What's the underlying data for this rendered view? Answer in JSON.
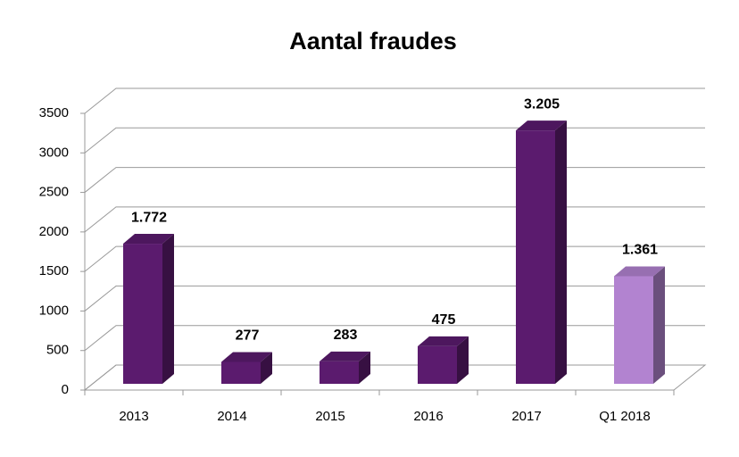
{
  "chart_data": {
    "type": "bar3d",
    "title": "Aantal fraudes",
    "categories": [
      "2013",
      "2014",
      "2015",
      "2016",
      "2017",
      "Q1 2018"
    ],
    "values": [
      1772,
      277,
      283,
      475,
      3205,
      1361
    ],
    "value_labels": [
      "1.772",
      "277",
      "283",
      "475",
      "3.205",
      "1.361"
    ],
    "colors": [
      "#5b1b6e",
      "#5b1b6e",
      "#5b1b6e",
      "#5b1b6e",
      "#5b1b6e",
      "#b283d0"
    ],
    "ylim": [
      0,
      3500
    ],
    "yticks": [
      0,
      500,
      1000,
      1500,
      2000,
      2500,
      3000,
      3500
    ],
    "grid": true
  }
}
